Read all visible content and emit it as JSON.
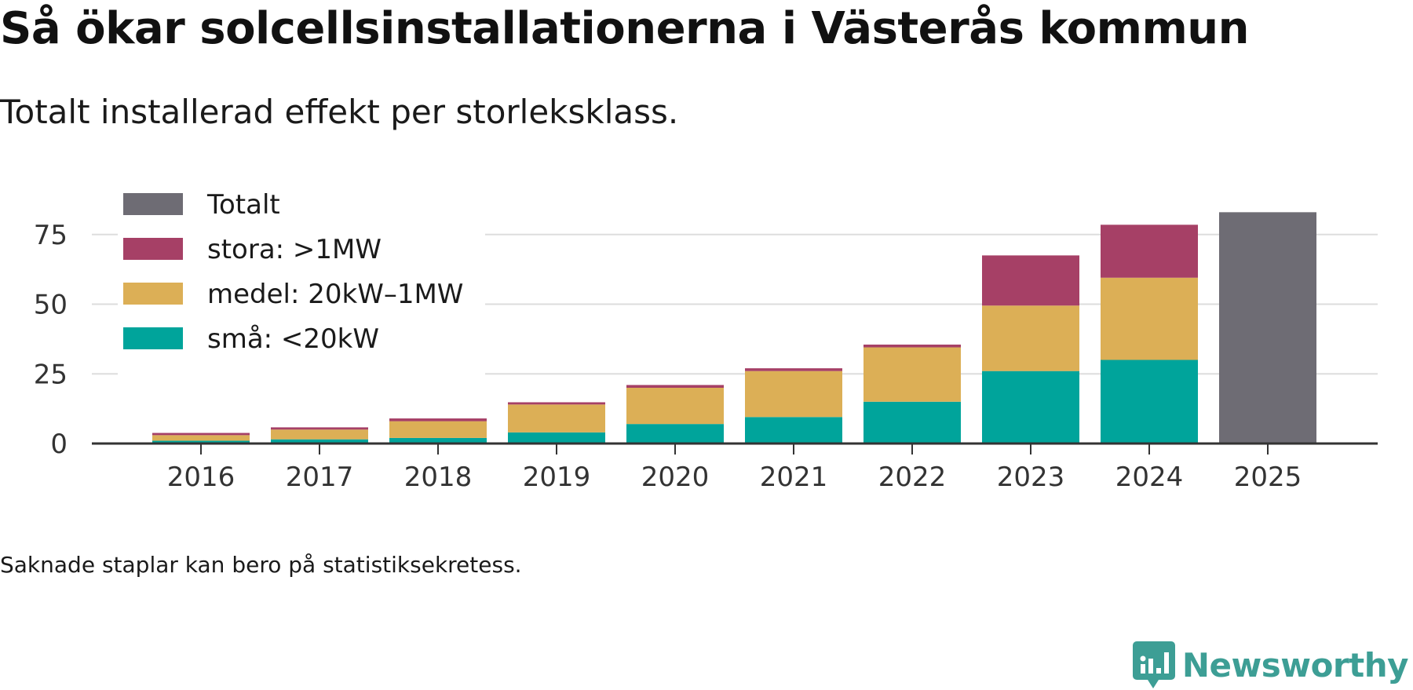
{
  "title": "Så ökar solcellsinstallationerna i Västerås kommun",
  "subtitle": "Totalt installerad effekt per storleksklass.",
  "footnote": "Saknade staplar kan bero på statistiksekretess.",
  "brand": {
    "name": "Newsworthy",
    "color": "#3d9e95"
  },
  "chart_data": {
    "type": "bar",
    "stacked": true,
    "categories": [
      "2016",
      "2017",
      "2018",
      "2019",
      "2020",
      "2021",
      "2022",
      "2023",
      "2024",
      "2025"
    ],
    "series": [
      {
        "name": "små: <20kW",
        "color": "#00a49b",
        "values": [
          1,
          1.5,
          2,
          4,
          7,
          9.5,
          15,
          26,
          30,
          null
        ]
      },
      {
        "name": "medel: 20kW–1MW",
        "color": "#dcaf56",
        "values": [
          2,
          3.5,
          6,
          10,
          13,
          16.5,
          19.5,
          23.5,
          29.5,
          null
        ]
      },
      {
        "name": "stora: >1MW",
        "color": "#a64066",
        "values": [
          0.8,
          0.8,
          1,
          0.8,
          1,
          1,
          1,
          18,
          19,
          null
        ]
      },
      {
        "name": "Totalt",
        "color": "#6e6c74",
        "values": [
          null,
          null,
          null,
          null,
          null,
          null,
          null,
          null,
          null,
          83
        ]
      }
    ],
    "legend_order": [
      "Totalt",
      "stora: >1MW",
      "medel: 20kW–1MW",
      "små: <20kW"
    ],
    "legend_position": "top-left",
    "yticks": [
      0,
      25,
      50,
      75
    ],
    "ylim": [
      0,
      85
    ],
    "xlabel": "",
    "ylabel": "",
    "grid": true
  }
}
